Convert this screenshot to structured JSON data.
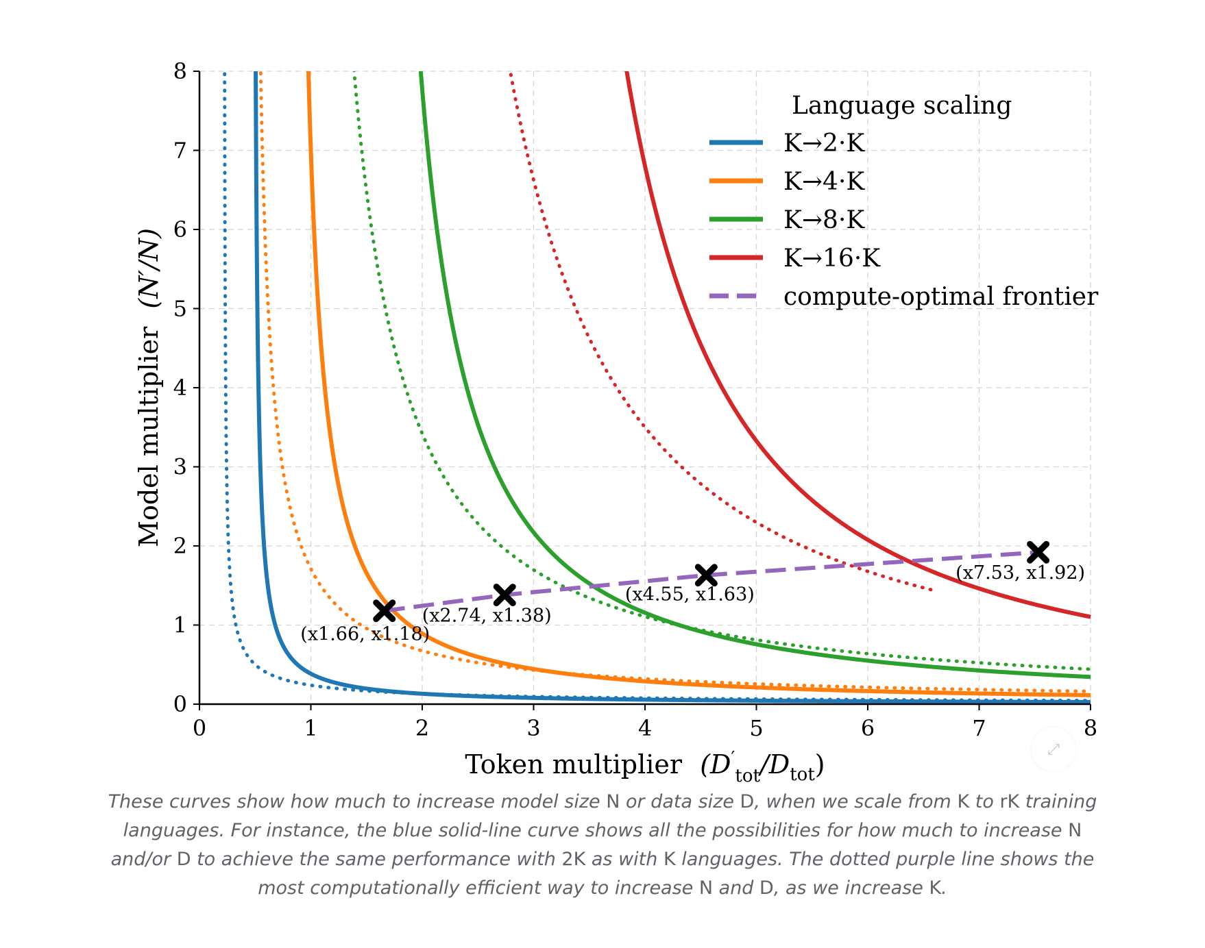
{
  "chart_data": {
    "type": "line",
    "xlabel_main": "Token multiplier",
    "xlabel_math": [
      "(D",
      "′",
      "tot",
      "/D",
      "tot",
      ")"
    ],
    "ylabel_main": "Model multiplier",
    "ylabel_math": "(N′/N)",
    "xlim": [
      0,
      8
    ],
    "ylim": [
      0,
      8
    ],
    "x_ticks": [
      "0",
      "1",
      "2",
      "3",
      "4",
      "5",
      "6",
      "7",
      "8"
    ],
    "y_ticks": [
      "0",
      "1",
      "2",
      "3",
      "4",
      "5",
      "6",
      "7",
      "8"
    ],
    "grid": true,
    "legend_title": "Language scaling",
    "legend_placement": "top-right",
    "series": [
      {
        "name": "K→2·K",
        "color": "#1f77b4",
        "solid": {
          "a": 0.48,
          "c": 0.2,
          "p": 1.0,
          "x_end": 8
        },
        "dotted": {
          "a": 0.22,
          "c": 0.2,
          "p": 0.72,
          "x_end": 8
        }
      },
      {
        "name": "K→4·K",
        "color": "#ff7f0e",
        "solid": {
          "a": 0.8,
          "c": 1.1,
          "p": 1.15,
          "x_end": 8
        },
        "dotted": {
          "a": 0.45,
          "c": 1.0,
          "p": 0.9,
          "x_end": 8
        }
      },
      {
        "name": "K→8·K",
        "color": "#2ca02c",
        "solid": {
          "a": 1.4,
          "c": 4.0,
          "p": 1.3,
          "x_end": 8
        },
        "dotted": {
          "a": 0.85,
          "c": 4.0,
          "p": 1.12,
          "x_end": 8
        }
      },
      {
        "name": "K→16·K",
        "color": "#d62728",
        "solid": {
          "a": 2.5,
          "c": 12.0,
          "p": 1.4,
          "x_end": 8
        },
        "dotted": {
          "a": 1.5,
          "c": 11.0,
          "p": 1.25,
          "x_end": 6.6
        }
      }
    ],
    "frontier": {
      "name": "compute-optimal frontier",
      "color": "#9467bd",
      "points": [
        {
          "x": 1.66,
          "y": 1.18,
          "label": "(x1.66, x1.18)"
        },
        {
          "x": 2.74,
          "y": 1.38,
          "label": "(x2.74, x1.38)"
        },
        {
          "x": 4.55,
          "y": 1.63,
          "label": "(x4.55, x1.63)"
        },
        {
          "x": 7.53,
          "y": 1.92,
          "label": "(x7.53, x1.92)"
        }
      ]
    }
  },
  "caption": {
    "p1": "These curves show how much to increase model size ",
    "s1": "N",
    "p2": " or data size ",
    "s2": "D",
    "p3": ", when we scale from ",
    "s3": "K",
    "p4": " to ",
    "s4": "rK",
    "p5": " training languages. For instance, the blue solid-line curve shows all the possibilities for how much to increase ",
    "s5": "N",
    "p6": " and/or ",
    "s6": "D",
    "p7": " to achieve the same performance with ",
    "s7": "2K",
    "p8": " as with ",
    "s8": "K",
    "p9": " languages. The dotted purple line shows the most computationally efficient way to increase ",
    "s9": "N",
    "p10": " and ",
    "s10": "D",
    "p11": ", as we increase ",
    "s11": "K",
    "p12": "."
  },
  "expand_icon": "expand-icon"
}
